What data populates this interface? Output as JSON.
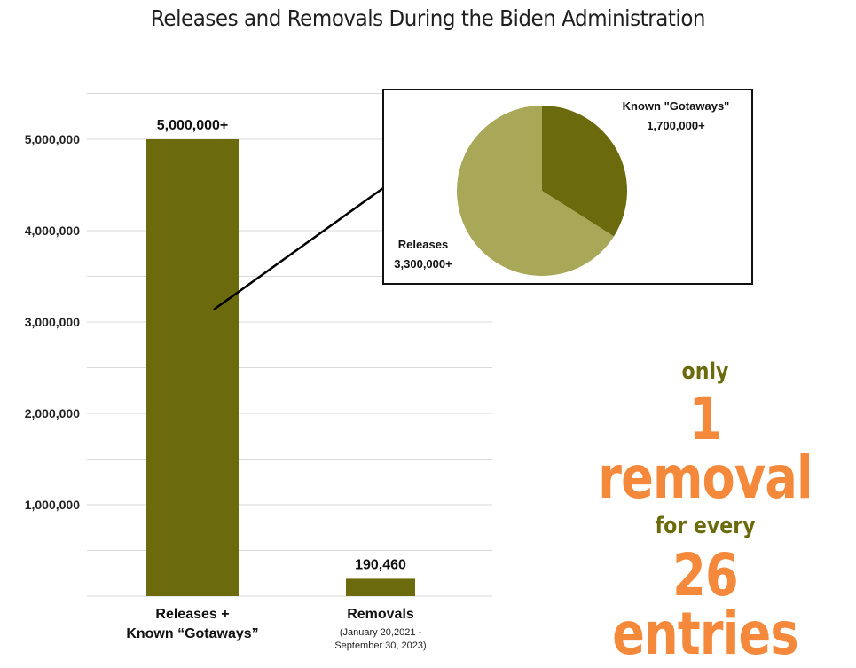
{
  "title": "Releases and Removals During the Biden Administration",
  "colors": {
    "bar": "#6b6a0c",
    "pie_releases": "#a9a758",
    "pie_gotaways": "#6b6a0c",
    "callout_small": "#6b6a0c",
    "callout_big": "#f4893c",
    "grid": "#d9d9d9"
  },
  "chart_data": [
    {
      "type": "bar",
      "categories": [
        "Releases + Known “Gotaways”",
        "Removals"
      ],
      "category_lines": [
        [
          "Releases +",
          "Known “Gotaways”"
        ],
        [
          "Removals"
        ]
      ],
      "category_sublabels": [
        [],
        [
          "(January 20,2021 -",
          "September 30, 2023)"
        ]
      ],
      "values": [
        5000000,
        190460
      ],
      "data_labels": [
        "5,000,000+",
        "190,460"
      ],
      "ylim": [
        0,
        5500000
      ],
      "yticks": [
        1000000,
        2000000,
        3000000,
        4000000,
        5000000
      ],
      "ytick_labels": [
        "1,000,000",
        "2,000,000",
        "3,000,000",
        "4,000,000",
        "5,000,000"
      ],
      "grid": true,
      "title": "Releases and Removals During the Biden Administration",
      "xlabel": "",
      "ylabel": ""
    },
    {
      "type": "pie",
      "slices": [
        {
          "label": "Known \"Gotaways\"",
          "value": 1700000,
          "value_label": "1,700,000+"
        },
        {
          "label": "Releases",
          "value": 3300000,
          "value_label": "3,300,000+"
        }
      ]
    }
  ],
  "callout": {
    "line1": "only",
    "line2": "1 removal",
    "line3": "for every",
    "line4": "26 entries"
  }
}
